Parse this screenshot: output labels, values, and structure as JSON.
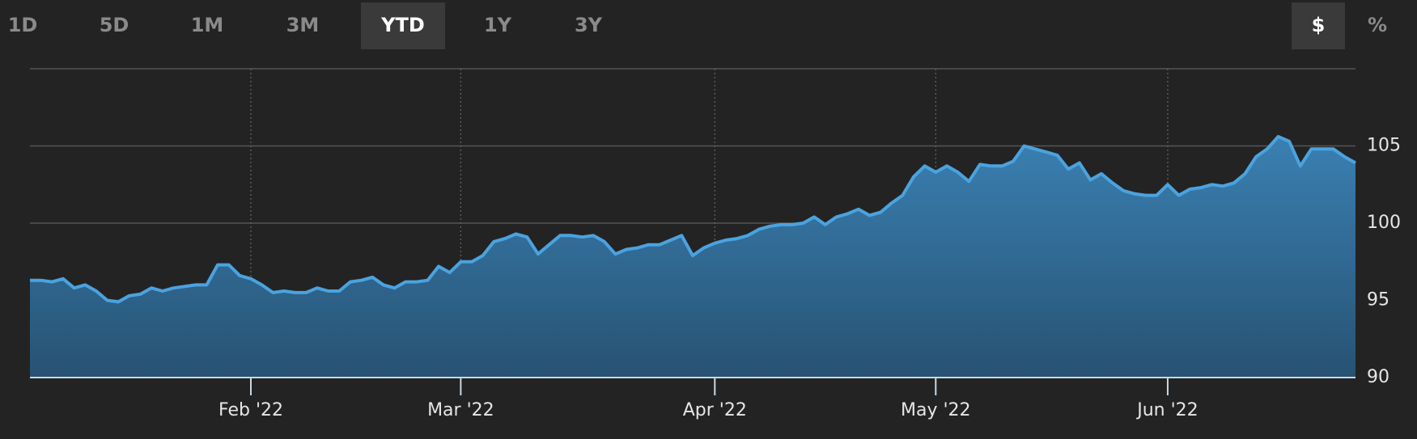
{
  "controls": {
    "ranges": [
      "1D",
      "5D",
      "1M",
      "3M",
      "YTD",
      "1Y",
      "3Y"
    ],
    "active_range": 4,
    "units": [
      "$",
      "%"
    ],
    "active_unit": 0
  },
  "chart_data": {
    "type": "area",
    "color": "#4aa3df",
    "fill_top": "#3a80b2",
    "fill_bottom": "#275273",
    "categories": [
      null,
      null,
      null,
      null,
      null,
      null,
      null,
      null,
      null,
      null,
      null,
      null,
      null,
      null,
      null,
      null,
      null,
      null,
      null,
      null,
      "Feb '22",
      null,
      null,
      null,
      null,
      null,
      null,
      null,
      null,
      null,
      null,
      null,
      null,
      null,
      null,
      null,
      null,
      null,
      null,
      "Mar '22",
      null,
      null,
      null,
      null,
      null,
      null,
      null,
      null,
      null,
      null,
      null,
      null,
      null,
      null,
      null,
      null,
      null,
      null,
      null,
      null,
      null,
      null,
      "Apr '22",
      null,
      null,
      null,
      null,
      null,
      null,
      null,
      null,
      null,
      null,
      null,
      null,
      null,
      null,
      null,
      null,
      null,
      null,
      null,
      "May '22",
      null,
      null,
      null,
      null,
      null,
      null,
      null,
      null,
      null,
      null,
      null,
      null,
      null,
      null,
      null,
      null,
      null,
      null,
      null,
      null,
      "Jun '22",
      null,
      null,
      null,
      null,
      null,
      null,
      null,
      null,
      null,
      null,
      null,
      null,
      null,
      null,
      null,
      null,
      null
    ],
    "values": [
      96.3,
      96.3,
      96.2,
      96.4,
      95.8,
      96.0,
      95.6,
      95.0,
      94.9,
      95.3,
      95.4,
      95.8,
      95.6,
      95.8,
      95.9,
      96.0,
      96.0,
      97.3,
      97.3,
      96.6,
      96.4,
      96.0,
      95.5,
      95.6,
      95.5,
      95.5,
      95.8,
      95.6,
      95.6,
      96.2,
      96.3,
      96.5,
      96.0,
      95.8,
      96.2,
      96.2,
      96.3,
      97.2,
      96.8,
      97.5,
      97.5,
      97.9,
      98.8,
      99.0,
      99.3,
      99.1,
      98.0,
      98.6,
      99.2,
      99.2,
      99.1,
      99.2,
      98.8,
      98.0,
      98.3,
      98.4,
      98.6,
      98.6,
      98.9,
      99.2,
      97.9,
      98.4,
      98.7,
      98.9,
      99.0,
      99.2,
      99.6,
      99.8,
      99.9,
      99.9,
      100.0,
      100.4,
      99.9,
      100.4,
      100.6,
      100.9,
      100.5,
      100.7,
      101.3,
      101.8,
      103.0,
      103.7,
      103.3,
      103.7,
      103.3,
      102.7,
      103.8,
      103.7,
      103.7,
      104.0,
      105.0,
      104.8,
      104.6,
      104.4,
      103.5,
      103.9,
      102.8,
      103.2,
      102.6,
      102.1,
      101.9,
      101.8,
      101.8,
      102.5,
      101.8,
      102.2,
      102.3,
      102.5,
      102.4,
      102.6,
      103.2,
      104.3,
      104.8,
      105.6,
      105.3,
      103.7,
      104.8,
      104.8,
      104.8,
      104.3,
      103.9
    ],
    "ylim": [
      90,
      110
    ],
    "yticks": [
      90,
      95,
      100,
      105
    ],
    "grid": true
  }
}
